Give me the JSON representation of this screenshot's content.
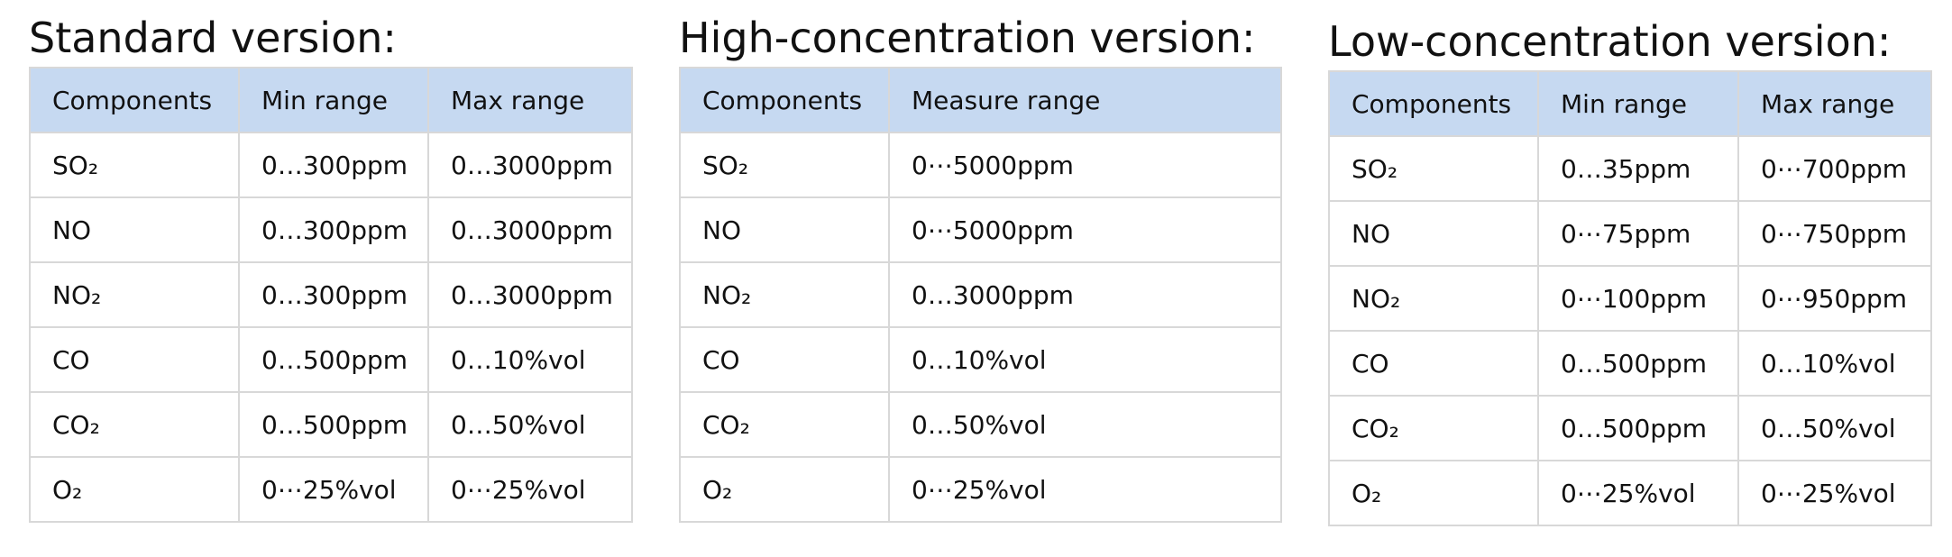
{
  "tables": [
    {
      "title": "Standard version:",
      "header": [
        "Components",
        "Min range",
        "Max range"
      ],
      "rows": [
        [
          "SO₂",
          "0…300ppm",
          "0…3000ppm"
        ],
        [
          "NO",
          "0…300ppm",
          "0…3000ppm"
        ],
        [
          "NO₂",
          "0…300ppm",
          "0…3000ppm"
        ],
        [
          "CO",
          "0…500ppm",
          "0…10%vol"
        ],
        [
          "CO₂",
          "0…500ppm",
          "0…50%vol"
        ],
        [
          "O₂",
          "0⋯25%vol",
          "0⋯25%vol"
        ]
      ]
    },
    {
      "title": "High-concentration version:",
      "header": [
        "Components",
        "Measure range"
      ],
      "rows": [
        [
          "SO₂",
          "0⋯5000ppm"
        ],
        [
          "NO",
          "0⋯5000ppm"
        ],
        [
          "NO₂",
          "0…3000ppm"
        ],
        [
          "CO",
          "0…10%vol"
        ],
        [
          "CO₂",
          "0…50%vol"
        ],
        [
          "O₂",
          "0⋯25%vol"
        ]
      ]
    },
    {
      "title": "Low-concentration version:",
      "header": [
        "Components",
        "Min range",
        "Max range"
      ],
      "rows": [
        [
          "SO₂",
          "0…35ppm",
          "0⋯700ppm"
        ],
        [
          "NO",
          "0⋯75ppm",
          "0⋯750ppm"
        ],
        [
          "NO₂",
          "0⋯100ppm",
          "0⋯950ppm"
        ],
        [
          "CO",
          "0…500ppm",
          "0…10%vol"
        ],
        [
          "CO₂",
          "0…500ppm",
          "0…50%vol"
        ],
        [
          "O₂",
          "0⋯25%vol",
          "0⋯25%vol"
        ]
      ]
    }
  ]
}
